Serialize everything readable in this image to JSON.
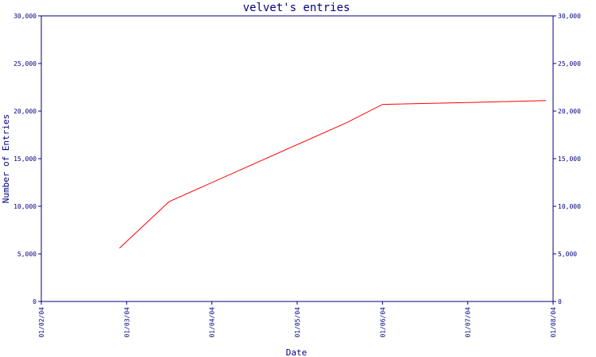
{
  "chart_data": {
    "type": "line",
    "title": "velvet's entries",
    "xlabel": "Date",
    "ylabel": "Number of Entries",
    "x_tick_labels": [
      "01/02/04",
      "01/03/04",
      "01/04/04",
      "01/05/04",
      "01/06/04",
      "01/07/04",
      "01/08/04"
    ],
    "x_range": [
      "2004-01-02",
      "2004-01-08"
    ],
    "y_ticks": [
      0,
      5000,
      10000,
      15000,
      20000,
      25000,
      30000
    ],
    "y_tick_labels": [
      "0",
      "5,000",
      "10,000",
      "15,000",
      "20,000",
      "25,000",
      "30,000"
    ],
    "ylim": [
      0,
      30000
    ],
    "grid": false,
    "legend": "none",
    "series": [
      {
        "x": [
          "2004-01-02 22:00",
          "2004-01-03 12:00",
          "2004-01-05 14:00",
          "2004-01-06 00:00",
          "2004-01-07 00:00",
          "2004-01-07 22:00"
        ],
        "y": [
          5600,
          10500,
          18800,
          20700,
          20900,
          21100
        ]
      }
    ],
    "colors": {
      "axis": "#000080",
      "text": "#000080",
      "line": "#ff0000",
      "background": "#ffffff"
    }
  }
}
